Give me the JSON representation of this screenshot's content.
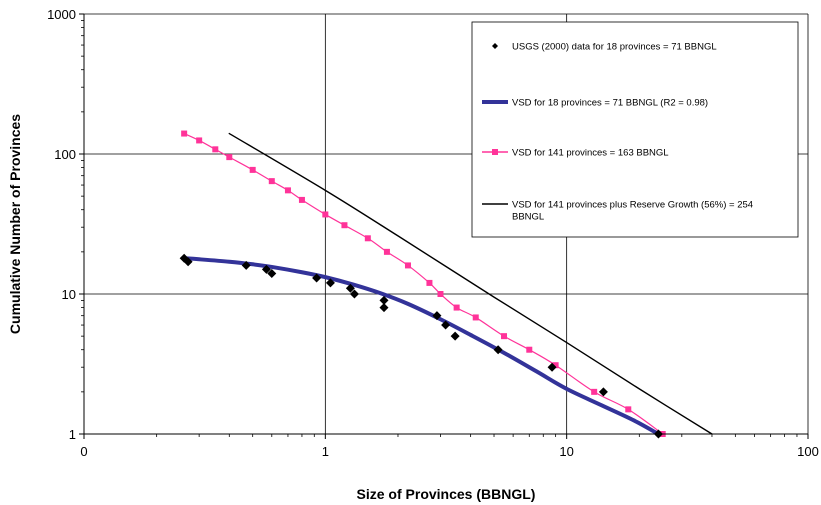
{
  "chart_data": {
    "type": "scatter",
    "xlabel": "Size of Provinces (BBNGL)",
    "ylabel": "Cumulative Number of Provinces",
    "x_scale": "log",
    "y_scale": "log",
    "xlim": [
      0.1,
      100
    ],
    "ylim": [
      1,
      1000
    ],
    "x_ticks": [
      {
        "value": 0.1,
        "label": "0"
      },
      {
        "value": 1,
        "label": "1"
      },
      {
        "value": 10,
        "label": "10"
      },
      {
        "value": 100,
        "label": "100"
      }
    ],
    "y_ticks": [
      {
        "value": 1,
        "label": "1"
      },
      {
        "value": 10,
        "label": "10"
      },
      {
        "value": 100,
        "label": "100"
      },
      {
        "value": 1000,
        "label": "1000"
      }
    ],
    "grid": true,
    "legend_position": "top-right",
    "series": [
      {
        "name": "USGS (2000) data for 18 provinces = 71 BBNGL",
        "kind": "markers",
        "marker": "diamond",
        "color": "#000000",
        "x": [
          0.26,
          0.27,
          0.47,
          0.57,
          0.6,
          0.92,
          1.05,
          1.27,
          1.32,
          1.75,
          1.75,
          2.9,
          3.15,
          3.45,
          5.2,
          8.7,
          14.2,
          24
        ],
        "y": [
          18,
          17,
          16,
          15,
          14,
          13,
          12,
          11,
          10,
          9,
          8,
          7,
          6,
          5,
          4,
          3,
          2,
          1
        ]
      },
      {
        "name": "VSD for 18 provinces = 71 BBNGL (R2 = 0.98)",
        "kind": "line",
        "color": "#333399",
        "x": [
          0.26,
          0.3,
          0.4,
          0.5,
          0.6,
          0.8,
          1.0,
          1.3,
          1.7,
          2.2,
          3.0,
          4.0,
          5.5,
          7.5,
          10,
          14,
          19,
          24
        ],
        "y": [
          18,
          17.7,
          17,
          16.3,
          15.6,
          14.3,
          13.2,
          11.7,
          10.1,
          8.5,
          6.6,
          5.1,
          3.8,
          2.8,
          2.1,
          1.6,
          1.25,
          1.0
        ]
      },
      {
        "name": "VSD for 141 provinces = 163 BBNGL",
        "kind": "line-markers",
        "marker": "square",
        "color": "#ff3399",
        "x": [
          0.26,
          0.3,
          0.35,
          0.4,
          0.5,
          0.6,
          0.7,
          0.8,
          1.0,
          1.2,
          1.5,
          1.8,
          2.2,
          2.7,
          3.0,
          3.5,
          4.2,
          5.5,
          7.0,
          9.0,
          13,
          18,
          25
        ],
        "y": [
          140,
          125,
          108,
          95,
          77,
          64,
          55,
          47,
          37,
          31,
          25,
          20,
          16,
          12,
          10,
          8,
          6.8,
          5,
          4,
          3.1,
          2,
          1.5,
          1
        ]
      },
      {
        "name": "VSD for 141 provinces plus Reserve Growth (56%) = 254 BBNGL",
        "kind": "line",
        "color": "#000000",
        "x": [
          0.4,
          1.0,
          2.0,
          5.0,
          10,
          20,
          40
        ],
        "y": [
          140,
          55,
          26,
          9.5,
          4.5,
          2.1,
          1.0
        ]
      }
    ]
  }
}
